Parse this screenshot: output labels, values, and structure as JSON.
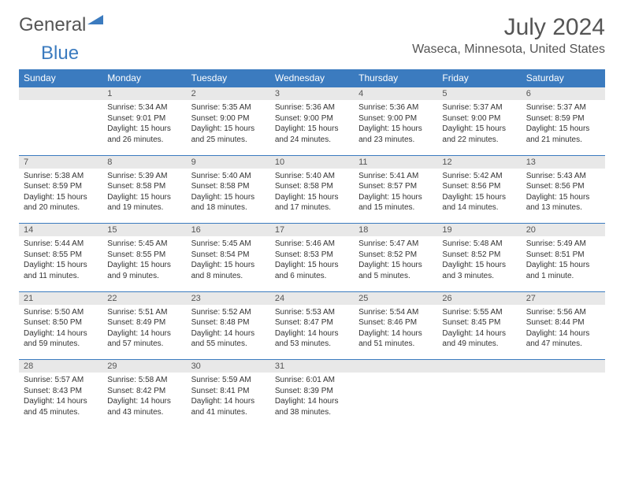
{
  "brand": {
    "part1": "General",
    "part2": "Blue"
  },
  "title": "July 2024",
  "location": "Waseca, Minnesota, United States",
  "colors": {
    "header_bg": "#3b7bbf",
    "header_text": "#ffffff",
    "num_row_bg": "#e8e8e8",
    "border": "#3b7bbf",
    "text": "#333333",
    "title_text": "#555555"
  },
  "dayNames": [
    "Sunday",
    "Monday",
    "Tuesday",
    "Wednesday",
    "Thursday",
    "Friday",
    "Saturday"
  ],
  "weeks": [
    {
      "nums": [
        "",
        "1",
        "2",
        "3",
        "4",
        "5",
        "6"
      ],
      "cells": [
        null,
        {
          "sunrise": "5:34 AM",
          "sunset": "9:01 PM",
          "dl1": "15 hours",
          "dl2": "and 26 minutes."
        },
        {
          "sunrise": "5:35 AM",
          "sunset": "9:00 PM",
          "dl1": "15 hours",
          "dl2": "and 25 minutes."
        },
        {
          "sunrise": "5:36 AM",
          "sunset": "9:00 PM",
          "dl1": "15 hours",
          "dl2": "and 24 minutes."
        },
        {
          "sunrise": "5:36 AM",
          "sunset": "9:00 PM",
          "dl1": "15 hours",
          "dl2": "and 23 minutes."
        },
        {
          "sunrise": "5:37 AM",
          "sunset": "9:00 PM",
          "dl1": "15 hours",
          "dl2": "and 22 minutes."
        },
        {
          "sunrise": "5:37 AM",
          "sunset": "8:59 PM",
          "dl1": "15 hours",
          "dl2": "and 21 minutes."
        }
      ]
    },
    {
      "nums": [
        "7",
        "8",
        "9",
        "10",
        "11",
        "12",
        "13"
      ],
      "cells": [
        {
          "sunrise": "5:38 AM",
          "sunset": "8:59 PM",
          "dl1": "15 hours",
          "dl2": "and 20 minutes."
        },
        {
          "sunrise": "5:39 AM",
          "sunset": "8:58 PM",
          "dl1": "15 hours",
          "dl2": "and 19 minutes."
        },
        {
          "sunrise": "5:40 AM",
          "sunset": "8:58 PM",
          "dl1": "15 hours",
          "dl2": "and 18 minutes."
        },
        {
          "sunrise": "5:40 AM",
          "sunset": "8:58 PM",
          "dl1": "15 hours",
          "dl2": "and 17 minutes."
        },
        {
          "sunrise": "5:41 AM",
          "sunset": "8:57 PM",
          "dl1": "15 hours",
          "dl2": "and 15 minutes."
        },
        {
          "sunrise": "5:42 AM",
          "sunset": "8:56 PM",
          "dl1": "15 hours",
          "dl2": "and 14 minutes."
        },
        {
          "sunrise": "5:43 AM",
          "sunset": "8:56 PM",
          "dl1": "15 hours",
          "dl2": "and 13 minutes."
        }
      ]
    },
    {
      "nums": [
        "14",
        "15",
        "16",
        "17",
        "18",
        "19",
        "20"
      ],
      "cells": [
        {
          "sunrise": "5:44 AM",
          "sunset": "8:55 PM",
          "dl1": "15 hours",
          "dl2": "and 11 minutes."
        },
        {
          "sunrise": "5:45 AM",
          "sunset": "8:55 PM",
          "dl1": "15 hours",
          "dl2": "and 9 minutes."
        },
        {
          "sunrise": "5:45 AM",
          "sunset": "8:54 PM",
          "dl1": "15 hours",
          "dl2": "and 8 minutes."
        },
        {
          "sunrise": "5:46 AM",
          "sunset": "8:53 PM",
          "dl1": "15 hours",
          "dl2": "and 6 minutes."
        },
        {
          "sunrise": "5:47 AM",
          "sunset": "8:52 PM",
          "dl1": "15 hours",
          "dl2": "and 5 minutes."
        },
        {
          "sunrise": "5:48 AM",
          "sunset": "8:52 PM",
          "dl1": "15 hours",
          "dl2": "and 3 minutes."
        },
        {
          "sunrise": "5:49 AM",
          "sunset": "8:51 PM",
          "dl1": "15 hours",
          "dl2": "and 1 minute."
        }
      ]
    },
    {
      "nums": [
        "21",
        "22",
        "23",
        "24",
        "25",
        "26",
        "27"
      ],
      "cells": [
        {
          "sunrise": "5:50 AM",
          "sunset": "8:50 PM",
          "dl1": "14 hours",
          "dl2": "and 59 minutes."
        },
        {
          "sunrise": "5:51 AM",
          "sunset": "8:49 PM",
          "dl1": "14 hours",
          "dl2": "and 57 minutes."
        },
        {
          "sunrise": "5:52 AM",
          "sunset": "8:48 PM",
          "dl1": "14 hours",
          "dl2": "and 55 minutes."
        },
        {
          "sunrise": "5:53 AM",
          "sunset": "8:47 PM",
          "dl1": "14 hours",
          "dl2": "and 53 minutes."
        },
        {
          "sunrise": "5:54 AM",
          "sunset": "8:46 PM",
          "dl1": "14 hours",
          "dl2": "and 51 minutes."
        },
        {
          "sunrise": "5:55 AM",
          "sunset": "8:45 PM",
          "dl1": "14 hours",
          "dl2": "and 49 minutes."
        },
        {
          "sunrise": "5:56 AM",
          "sunset": "8:44 PM",
          "dl1": "14 hours",
          "dl2": "and 47 minutes."
        }
      ]
    },
    {
      "nums": [
        "28",
        "29",
        "30",
        "31",
        "",
        "",
        ""
      ],
      "cells": [
        {
          "sunrise": "5:57 AM",
          "sunset": "8:43 PM",
          "dl1": "14 hours",
          "dl2": "and 45 minutes."
        },
        {
          "sunrise": "5:58 AM",
          "sunset": "8:42 PM",
          "dl1": "14 hours",
          "dl2": "and 43 minutes."
        },
        {
          "sunrise": "5:59 AM",
          "sunset": "8:41 PM",
          "dl1": "14 hours",
          "dl2": "and 41 minutes."
        },
        {
          "sunrise": "6:01 AM",
          "sunset": "8:39 PM",
          "dl1": "14 hours",
          "dl2": "and 38 minutes."
        },
        null,
        null,
        null
      ]
    }
  ],
  "labels": {
    "sunrise": "Sunrise:",
    "sunset": "Sunset:",
    "daylight": "Daylight:"
  }
}
